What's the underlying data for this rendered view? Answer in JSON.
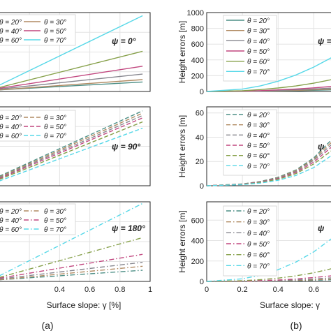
{
  "colors": {
    "20": "#4d8f86",
    "30": "#b08a62",
    "40": "#86868e",
    "50": "#c1477f",
    "60": "#86a04a",
    "70": "#57d8e8",
    "grid": "#e3e3e3",
    "axis": "#262626"
  },
  "theta_labels": [
    "θ = 20°",
    "θ = 30°",
    "θ = 40°",
    "θ = 50°",
    "θ = 60°",
    "θ = 70°"
  ],
  "panel_labels": [
    "(a)",
    "(b)"
  ],
  "chart_data": [
    {
      "id": "a-psi-0",
      "type": "line",
      "annotation": "ψ = 0°",
      "line_style": "solid",
      "xlim": [
        0,
        1
      ],
      "ylim": [
        0,
        1
      ],
      "x": [
        0,
        0.95
      ],
      "series": [
        {
          "name": "θ = 20°",
          "values": [
            0.02,
            0.12
          ]
        },
        {
          "name": "θ = 30°",
          "values": [
            0.02,
            0.15
          ]
        },
        {
          "name": "θ = 40°",
          "values": [
            0.03,
            0.22
          ]
        },
        {
          "name": "θ = 50°",
          "values": [
            0.04,
            0.32
          ]
        },
        {
          "name": "θ = 60°",
          "values": [
            0.05,
            0.51
          ]
        },
        {
          "name": "θ = 70°",
          "values": [
            0.08,
            0.96
          ]
        }
      ]
    },
    {
      "id": "a-psi-90",
      "type": "line",
      "annotation": "ψ = 90°",
      "line_style": "dashed",
      "xlim": [
        0,
        1
      ],
      "ylim": [
        0,
        1
      ],
      "x": [
        0,
        0.95
      ],
      "series": [
        {
          "name": "θ = 20°",
          "values": [
            0.12,
            0.95
          ]
        },
        {
          "name": "θ = 30°",
          "values": [
            0.11,
            0.92
          ]
        },
        {
          "name": "θ = 40°",
          "values": [
            0.1,
            0.89
          ]
        },
        {
          "name": "θ = 50°",
          "values": [
            0.09,
            0.86
          ]
        },
        {
          "name": "θ = 60°",
          "values": [
            0.08,
            0.81
          ]
        },
        {
          "name": "θ = 70°",
          "values": [
            0.06,
            0.73
          ]
        }
      ]
    },
    {
      "id": "a-psi-180",
      "type": "line",
      "annotation": "ψ = 180°",
      "line_style": "dashdot",
      "xlim": [
        0,
        1
      ],
      "ylim": [
        0,
        1
      ],
      "x": [
        0,
        0.95
      ],
      "series": [
        {
          "name": "θ = 20°",
          "values": [
            0.02,
            0.14
          ]
        },
        {
          "name": "θ = 30°",
          "values": [
            0.02,
            0.19
          ]
        },
        {
          "name": "θ = 40°",
          "values": [
            0.03,
            0.24
          ]
        },
        {
          "name": "θ = 50°",
          "values": [
            0.04,
            0.34
          ]
        },
        {
          "name": "θ = 60°",
          "values": [
            0.05,
            0.55
          ]
        },
        {
          "name": "θ = 70°",
          "values": [
            0.07,
            0.98
          ]
        }
      ],
      "x_ticks": [
        "0.4",
        "0.6",
        "0.8",
        "1"
      ],
      "xlabel": "Surface slope: γ [%]"
    },
    {
      "id": "b-psi-0",
      "type": "line",
      "annotation": "ψ =",
      "line_style": "solid",
      "ylabel": "Height errors [m]",
      "xlim": [
        0,
        0.7
      ],
      "ylim": [
        0,
        1000
      ],
      "y_ticks": [
        "0",
        "200",
        "400",
        "600",
        "800",
        "1000"
      ],
      "x": [
        0,
        0.2,
        0.3,
        0.4,
        0.5,
        0.6,
        0.7
      ],
      "series": [
        {
          "name": "θ = 20°",
          "values": [
            0,
            1,
            3,
            6,
            10,
            15,
            21
          ]
        },
        {
          "name": "θ = 30°",
          "values": [
            0,
            2,
            5,
            9,
            14,
            21,
            29
          ]
        },
        {
          "name": "θ = 40°",
          "values": [
            0,
            3,
            7,
            13,
            21,
            31,
            43
          ]
        },
        {
          "name": "θ = 50°",
          "values": [
            0,
            5,
            11,
            20,
            32,
            46,
            64
          ]
        },
        {
          "name": "θ = 60°",
          "values": [
            0,
            10,
            24,
            44,
            70,
            105,
            150
          ]
        },
        {
          "name": "θ = 70°",
          "values": [
            0,
            30,
            70,
            130,
            210,
            310,
            430
          ]
        }
      ]
    },
    {
      "id": "b-psi-90",
      "type": "line",
      "annotation": "ψ",
      "line_style": "dashed",
      "ylabel": "Height errors [m]",
      "xlim": [
        0,
        0.7
      ],
      "ylim": [
        0,
        65
      ],
      "y_ticks": [
        "0",
        "20",
        "40",
        "60"
      ],
      "x": [
        0,
        0.2,
        0.3,
        0.4,
        0.5,
        0.6,
        0.7
      ],
      "series": [
        {
          "name": "θ = 20°",
          "values": [
            0,
            1.5,
            3.5,
            7,
            13,
            23,
            38
          ]
        },
        {
          "name": "θ = 30°",
          "values": [
            0,
            1.4,
            3.3,
            6.6,
            12.5,
            22,
            36
          ]
        },
        {
          "name": "θ = 40°",
          "values": [
            0,
            1.3,
            3.1,
            6.2,
            11.8,
            21,
            34
          ]
        },
        {
          "name": "θ = 50°",
          "values": [
            0,
            1.2,
            2.9,
            5.8,
            11,
            19.5,
            32
          ]
        },
        {
          "name": "θ = 60°",
          "values": [
            0,
            1.1,
            2.6,
            5.3,
            10,
            18,
            29
          ]
        },
        {
          "name": "θ = 70°",
          "values": [
            0,
            0.9,
            2.2,
            4.5,
            8.5,
            15,
            25
          ]
        }
      ]
    },
    {
      "id": "b-psi-180",
      "type": "line",
      "annotation": "ψ",
      "line_style": "dashdot",
      "ylabel": "Height errors [m]",
      "xlim": [
        0,
        0.7
      ],
      "ylim": [
        0,
        780
      ],
      "y_ticks": [
        "0",
        "200",
        "400",
        "600"
      ],
      "x_ticks": [
        "0",
        "0.2",
        "0.4",
        "0.6"
      ],
      "xlabel": "Surface slope: γ",
      "x": [
        0,
        0.2,
        0.3,
        0.4,
        0.5,
        0.6,
        0.7
      ],
      "series": [
        {
          "name": "θ = 20°",
          "values": [
            0,
            1,
            2,
            4,
            7,
            11,
            16
          ]
        },
        {
          "name": "θ = 30°",
          "values": [
            0,
            1,
            3,
            6,
            10,
            16,
            23
          ]
        },
        {
          "name": "θ = 40°",
          "values": [
            0,
            2,
            5,
            9,
            15,
            24,
            35
          ]
        },
        {
          "name": "θ = 50°",
          "values": [
            0,
            3,
            8,
            14,
            24,
            38,
            55
          ]
        },
        {
          "name": "θ = 60°",
          "values": [
            0,
            7,
            17,
            32,
            55,
            85,
            125
          ]
        },
        {
          "name": "θ = 70°",
          "values": [
            0,
            25,
            60,
            115,
            190,
            290,
            420
          ]
        }
      ]
    }
  ]
}
